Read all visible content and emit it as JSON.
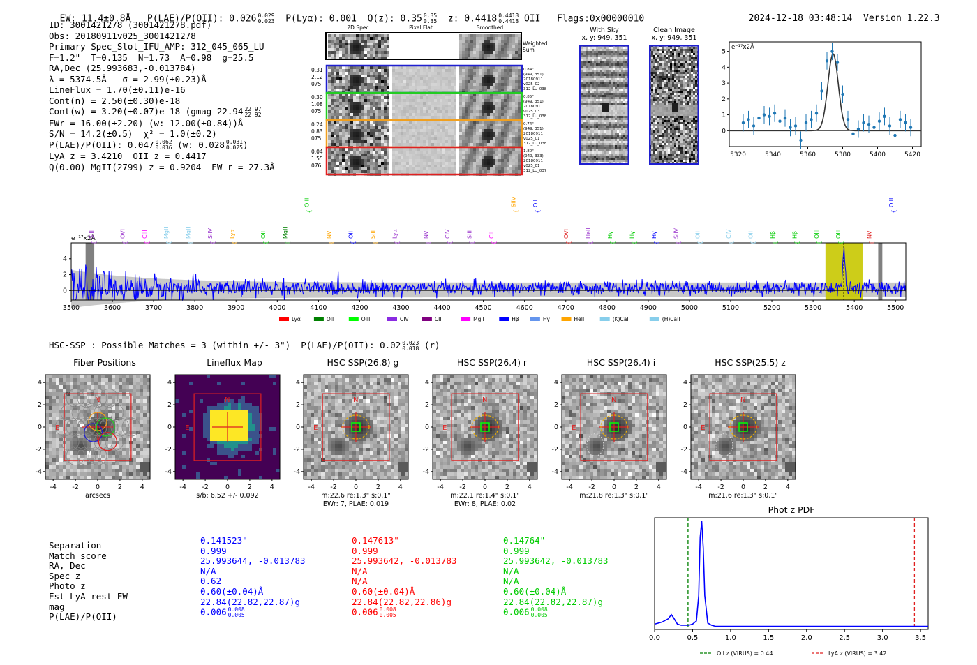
{
  "header": {
    "ew": "EW: 11.4±0.8Å",
    "plae": "P(LAE)/P(OII): 0.026",
    "plae_hi": "0.029",
    "plae_lo": "0.023",
    "plya": "P(Lyα): 0.001",
    "qz": "Q(z): 0.35",
    "qz_hi": "0.35",
    "qz_lo": "0.35",
    "z": "z: 0.4418",
    "z_hi": "0.4418",
    "z_lo": "0.4418",
    "z_line": "OII",
    "flags": "Flags:0x00000010",
    "datetime": "2024-12-18 03:48:14",
    "version": "Version 1.22.3"
  },
  "info": {
    "lines": [
      "ID: 3001421278 (3001421278.pdf)",
      "Obs: 20180911v025_3001421278",
      "Primary Spec_Slot_IFU_AMP: 312_045_065_LU",
      "F=1.2\"  T=0.135  N=1.73  A=0.98  g=25.5",
      "RA,Dec (25.993683,-0.013784)",
      "λ = 5374.5Å   σ = 2.99(±0.23)Å",
      "LineFlux = 1.70(±0.11)e-16",
      "Cont(n) = 2.50(±0.30)e-18"
    ],
    "contw": "Cont(w) = 3.20(±0.07)e-18 (gmag 22.94",
    "contw_hi": "22.97",
    "contw_lo": "22.92",
    "lines2": [
      "EWr = 16.00(±2.20) (w: 12.00(±0.84))Å",
      "S/N = 14.2(±0.5)  χ² = 1.0(±0.2)"
    ],
    "plae_line": "P(LAE)/P(OII): 0.047",
    "plae_line_hi": "0.062",
    "plae_line_lo": "0.036",
    "plae_line_w": "(w: 0.028",
    "plae_line_w_hi": "0.031",
    "plae_line_w_lo": "0.025",
    "lines3": [
      "LyA z = 3.4210  OII z = 0.4417",
      "Q(0.00) MgII(2799) z = 0.9204  EW r = 27.3Å"
    ]
  },
  "cutouts": {
    "headers": [
      "2D Spec",
      "Pixel Flat",
      "Smoothed"
    ],
    "weighted_label": "Weighted Sum",
    "rows": [
      {
        "left": [
          "0.31",
          "2.12",
          "075"
        ],
        "right": [
          "0.84\"",
          "(949, 351)",
          "20180911",
          "v025_02",
          "312_LU_038"
        ],
        "color": "#1f1fd0"
      },
      {
        "left": [
          "0.30",
          "1.08",
          "075"
        ],
        "right": [
          "0.85\"",
          "(949, 351)",
          "20180911",
          "v025_03",
          "312_LU_038"
        ],
        "color": "#22cc22"
      },
      {
        "left": [
          "0.24",
          "0.83",
          "075"
        ],
        "right": [
          "0.74\"",
          "(949, 351)",
          "20180911",
          "v025_01",
          "312_LU_038"
        ],
        "color": "#f0a020"
      },
      {
        "left": [
          "0.04",
          "1.55",
          "076"
        ],
        "right": [
          "1.80\"",
          "(949, 333)",
          "20180911",
          "v025_01",
          "312_LU_037"
        ],
        "color": "#e02020"
      }
    ],
    "with_sky": "With Sky",
    "with_sky_xy": "x, y: 949, 351",
    "clean": "Clean Image",
    "clean_xy": "x, y: 949, 351"
  },
  "fit_chart": {
    "ylabel": "e⁻¹⁷x2Å",
    "xticks": [
      "5320",
      "5340",
      "5360",
      "5380",
      "5400",
      "5420"
    ],
    "yticks": [
      "0",
      "1",
      "2",
      "3",
      "4",
      "5"
    ]
  },
  "spectrum": {
    "ylabel": "e⁻¹⁷x2Å",
    "yticks": [
      "0",
      "2",
      "4"
    ],
    "xticks": [
      "3500",
      "3600",
      "3700",
      "3800",
      "3900",
      "4000",
      "4100",
      "4200",
      "4300",
      "4400",
      "4500",
      "4600",
      "4700",
      "4800",
      "4900",
      "5000",
      "5100",
      "5200",
      "5300",
      "5400",
      "5500"
    ],
    "legend": [
      {
        "label": "Lyα",
        "color": "#ff0000"
      },
      {
        "label": "OII",
        "color": "#008000"
      },
      {
        "label": "OIII",
        "color": "#00ff00"
      },
      {
        "label": "CIV",
        "color": "#8a2be2"
      },
      {
        "label": "CIII",
        "color": "#800080"
      },
      {
        "label": "MgII",
        "color": "#ff00ff"
      },
      {
        "label": "Hβ",
        "color": "#0000ff"
      },
      {
        "label": "Hγ",
        "color": "#6495ed"
      },
      {
        "label": "HeII",
        "color": "#ffa500"
      },
      {
        "label": "(K)CaII",
        "color": "#87ceeb"
      },
      {
        "label": "(H)CaII",
        "color": "#87ceeb"
      }
    ],
    "line_markers": [
      {
        "label": "SiII",
        "color": "#9932cc",
        "tier": 2
      },
      {
        "label": "OVI",
        "color": "#9932cc",
        "tier": 2
      },
      {
        "label": "CIII",
        "color": "#ff00ff",
        "tier": 2
      },
      {
        "label": "MgII",
        "color": "#87ceeb",
        "tier": 2
      },
      {
        "label": "MgII",
        "color": "#87ceeb",
        "tier": 2
      },
      {
        "label": "SiIV",
        "color": "#9932cc",
        "tier": 2
      },
      {
        "label": "Lyα",
        "color": "#ffa500",
        "tier": 2
      },
      {
        "label": "OII",
        "color": "#00cc00",
        "tier": 2
      },
      {
        "label": "MgII",
        "color": "#008000",
        "tier": 2
      },
      {
        "label": "OIII",
        "color": "#00cc00",
        "tier": 1
      },
      {
        "label": "NV",
        "color": "#ffa500",
        "tier": 2
      },
      {
        "label": "OII",
        "color": "#0000ff",
        "tier": 2
      },
      {
        "label": "SiII",
        "color": "#ffa500",
        "tier": 2
      },
      {
        "label": "Lyα",
        "color": "#9932cc",
        "tier": 2
      },
      {
        "label": "NV",
        "color": "#9932cc",
        "tier": 2
      },
      {
        "label": "CIV",
        "color": "#9932cc",
        "tier": 2
      },
      {
        "label": "SiII",
        "color": "#9932cc",
        "tier": 2
      },
      {
        "label": "CII",
        "color": "#ff00ff",
        "tier": 2
      },
      {
        "label": "SiIV",
        "color": "#ffa500",
        "tier": 1
      },
      {
        "label": "OII",
        "color": "#0000ff",
        "tier": 1
      },
      {
        "label": "OVI",
        "color": "#e02020",
        "tier": 2
      },
      {
        "label": "HeII",
        "color": "#9932cc",
        "tier": 2
      },
      {
        "label": "Hγ",
        "color": "#00cc00",
        "tier": 2
      },
      {
        "label": "Hγ",
        "color": "#00cc00",
        "tier": 2
      },
      {
        "label": "Hγ",
        "color": "#0000ff",
        "tier": 2
      },
      {
        "label": "SiIV",
        "color": "#9932cc",
        "tier": 2
      },
      {
        "label": "OII",
        "color": "#87ceeb",
        "tier": 2
      },
      {
        "label": "CIV",
        "color": "#87ceeb",
        "tier": 2
      },
      {
        "label": "OII",
        "color": "#87ceeb",
        "tier": 2
      },
      {
        "label": "Hβ",
        "color": "#00cc00",
        "tier": 2
      },
      {
        "label": "Hβ",
        "color": "#00cc00",
        "tier": 2
      },
      {
        "label": "OIII",
        "color": "#00cc00",
        "tier": 2
      },
      {
        "label": "OIII",
        "color": "#00cc00",
        "tier": 2
      },
      {
        "label": "NV",
        "color": "#e02020",
        "tier": 2
      },
      {
        "label": "OIII",
        "color": "#0000ff",
        "tier": 1
      }
    ]
  },
  "hsc": {
    "summary": "HSC-SSP : Possible Matches = 3 (within +/- 3\")  P(LAE)/P(OII): 0.02",
    "summary_hi": "0.023",
    "summary_lo": "0.018",
    "summary_tail": "(r)",
    "panels": [
      {
        "title": "Fiber Positions",
        "cap1": "arcsecs",
        "cap2": ""
      },
      {
        "title": "Lineflux Map",
        "cap1": "s/b: 6.52 +/- 0.092",
        "cap2": ""
      },
      {
        "title": "HSC SSP(26.8) g",
        "cap1": "m:22.6  re:1.3\"  s:0.1\"",
        "cap2": "EWr: 7, PLAE: 0.019"
      },
      {
        "title": "HSC SSP(26.4) r",
        "cap1": "m:22.1  re:1.4\"  s:0.1\"",
        "cap2": "EWr: 8, PLAE: 0.02"
      },
      {
        "title": "HSC SSP(26.4) i",
        "cap1": "m:21.8  re:1.3\"  s:0.1\"",
        "cap2": ""
      },
      {
        "title": "HSC SSP(25.5) z",
        "cap1": "m:21.6  re:1.3\"  s:0.1\"",
        "cap2": ""
      }
    ],
    "ticks": [
      "-4",
      "-2",
      "0",
      "2",
      "4"
    ],
    "yticks": [
      "4",
      "2",
      "0",
      "-2",
      "-4"
    ],
    "north": "N",
    "east": "E"
  },
  "matches": {
    "labels": [
      "Separation",
      "Match score",
      "RA, Dec",
      "Spec z",
      "Photo z",
      "Est LyA rest-EW",
      "mag",
      "P(LAE)/P(OII)"
    ],
    "columns": [
      {
        "color": "#0000ff",
        "values": [
          "0.141523\"",
          "0.999",
          "25.993644, -0.013783",
          "N/A",
          "0.62",
          "0.60(±0.04)Å",
          "22.84(22.82,22.87)g",
          "0.006"
        ],
        "plae_hi": "0.008",
        "plae_lo": "0.005"
      },
      {
        "color": "#ff0000",
        "values": [
          "0.147613\"",
          "0.999",
          "25.993642, -0.013783",
          "N/A",
          "N/A",
          "0.60(±0.04)Å",
          "22.84(22.82,22.86)g",
          "0.006"
        ],
        "plae_hi": "0.008",
        "plae_lo": "0.005"
      },
      {
        "color": "#00cc00",
        "values": [
          "0.14764\"",
          "0.999",
          "25.993642, -0.013783",
          "N/A",
          "N/A",
          "0.60(±0.04)Å",
          "22.84(22.82,22.87)g",
          "0.006"
        ],
        "plae_hi": "0.008",
        "plae_lo": "0.005"
      }
    ]
  },
  "chart_data": [
    {
      "type": "scatter",
      "title": "",
      "xlabel": "",
      "ylabel": "e⁻¹⁷x2Å",
      "xlim": [
        5315,
        5425
      ],
      "ylim": [
        -1.0,
        5.6
      ],
      "x": [
        5323,
        5326,
        5329,
        5332,
        5335,
        5338,
        5341,
        5344,
        5347,
        5350,
        5353,
        5356,
        5359,
        5362,
        5365,
        5368,
        5371,
        5374,
        5377,
        5380,
        5383,
        5386,
        5389,
        5392,
        5395,
        5398,
        5401,
        5404,
        5407,
        5410,
        5413,
        5416,
        5419
      ],
      "y": [
        0.5,
        0.7,
        0.3,
        0.8,
        1.0,
        0.9,
        1.1,
        0.6,
        0.8,
        0.2,
        0.3,
        -0.6,
        0.5,
        0.7,
        1.1,
        2.5,
        4.4,
        5.0,
        4.3,
        2.3,
        0.7,
        -0.2,
        0.1,
        0.5,
        0.4,
        0.2,
        0.6,
        0.9,
        0.3,
        -0.3,
        0.7,
        0.5,
        0.2
      ],
      "fit": "gaussian",
      "fit_center": 5374.5,
      "fit_sigma": 2.99,
      "fit_amp": 4.85,
      "fit_base": 0.0
    },
    {
      "type": "line",
      "title": "",
      "xlabel": "",
      "ylabel": "e⁻¹⁷x2Å",
      "xlim": [
        3500,
        5525
      ],
      "ylim": [
        -1.2,
        6.0
      ],
      "series": [
        {
          "name": "spectrum",
          "color": "#0000ff"
        }
      ],
      "noise_level": 1.0,
      "emission_line": 5374.5,
      "fit_window": [
        5330,
        5420
      ],
      "masked_regions": [
        [
          3535,
          3556
        ],
        [
          5458,
          5468
        ]
      ]
    },
    {
      "type": "line",
      "title": "Phot z PDF",
      "xlim": [
        0.0,
        3.6
      ],
      "xticks": [
        "0.0",
        "0.5",
        "1.0",
        "1.5",
        "2.0",
        "2.5",
        "3.0",
        "3.5"
      ],
      "x": [
        0.0,
        0.05,
        0.1,
        0.15,
        0.18,
        0.22,
        0.25,
        0.3,
        0.35,
        0.4,
        0.45,
        0.5,
        0.55,
        0.58,
        0.6,
        0.62,
        0.64,
        0.66,
        0.7,
        0.75,
        0.8,
        1.0,
        1.5,
        2.0,
        2.5,
        3.0,
        3.6
      ],
      "y": [
        0.03,
        0.04,
        0.05,
        0.07,
        0.08,
        0.12,
        0.09,
        0.03,
        0.02,
        0.02,
        0.02,
        0.03,
        0.06,
        0.3,
        0.85,
        1.0,
        0.75,
        0.3,
        0.04,
        0.02,
        0.01,
        0.01,
        0.01,
        0.01,
        0.01,
        0.01,
        0.01
      ],
      "markers": [
        {
          "label": "OII z (VIRUS) = 0.44",
          "z": 0.44,
          "color": "#008000"
        },
        {
          "label": "LyA z (VIRUS) = 3.42",
          "z": 3.42,
          "color": "#e02020"
        }
      ]
    }
  ]
}
